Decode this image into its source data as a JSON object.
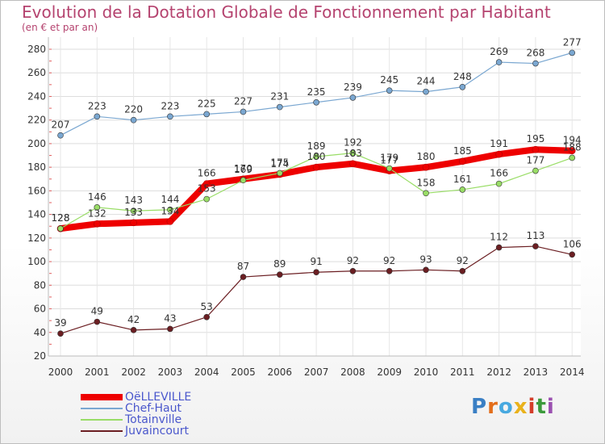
{
  "header": {
    "title": "Evolution de la Dotation Globale de Fonctionnement par Habitant",
    "subtitle": "(en € et par an)"
  },
  "brand": {
    "logo_text": "Proxiti",
    "letter_colors": [
      "#3a7fc4",
      "#e36f1c",
      "#48a9e0",
      "#e9b21c",
      "#d43d2a",
      "#3b9a3b",
      "#9a4fb0"
    ]
  },
  "chart_data": {
    "type": "line",
    "title": "Evolution de la Dotation Globale de Fonctionnement par Habitant",
    "subtitle": "(en € et par an)",
    "xlabel": "",
    "ylabel": "",
    "x": [
      "2000",
      "2001",
      "2002",
      "2003",
      "2004",
      "2005",
      "2006",
      "2007",
      "2008",
      "2009",
      "2010",
      "2011",
      "2012",
      "2013",
      "2014"
    ],
    "ylim": [
      20,
      280
    ],
    "yticks": [
      20,
      40,
      60,
      80,
      100,
      120,
      140,
      160,
      180,
      200,
      220,
      240,
      260,
      280
    ],
    "grid": true,
    "legend": "bottom-left",
    "series": [
      {
        "name": "OëLLEVILLE",
        "color": "#ee0000",
        "values": [
          128,
          132,
          133,
          134,
          166,
          170,
          174,
          180,
          183,
          177,
          180,
          185,
          191,
          195,
          194
        ]
      },
      {
        "name": "Chef-Haut",
        "color": "#7aa7d1",
        "values": [
          207,
          223,
          220,
          223,
          225,
          227,
          231,
          235,
          239,
          245,
          244,
          248,
          269,
          268,
          277
        ]
      },
      {
        "name": "Totainville",
        "color": "#99dd66",
        "values": [
          128,
          146,
          143,
          144,
          153,
          169,
          175,
          189,
          192,
          179,
          158,
          161,
          166,
          177,
          188
        ]
      },
      {
        "name": "Juvaincourt",
        "color": "#6b1e22",
        "values": [
          39,
          49,
          42,
          43,
          53,
          87,
          89,
          91,
          92,
          92,
          93,
          92,
          112,
          113,
          106
        ]
      }
    ]
  }
}
